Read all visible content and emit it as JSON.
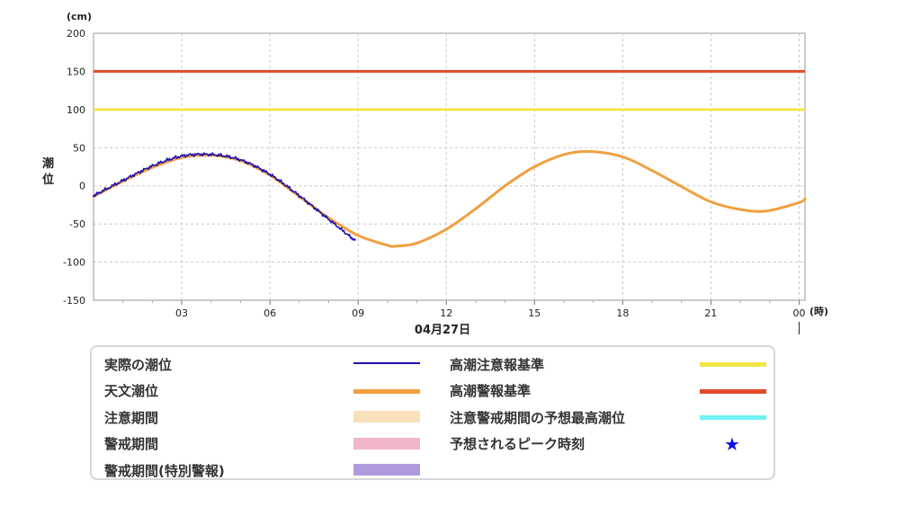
{
  "chart_data": {
    "type": "line",
    "ylabel": "潮位",
    "yunit": "(cm)",
    "xunit": "(時)",
    "date_label": "04月27日",
    "ylim": [
      -150,
      200
    ],
    "yticks": [
      200,
      150,
      100,
      50,
      0,
      -50,
      -100,
      -150
    ],
    "xlim_hours": [
      0,
      24.2
    ],
    "xticks": [
      {
        "hour": 3,
        "label": "03"
      },
      {
        "hour": 6,
        "label": "06"
      },
      {
        "hour": 9,
        "label": "09"
      },
      {
        "hour": 12,
        "label": "12"
      },
      {
        "hour": 15,
        "label": "15"
      },
      {
        "hour": 18,
        "label": "18"
      },
      {
        "hour": 21,
        "label": "21"
      },
      {
        "hour": 24,
        "label": "00"
      }
    ],
    "grid": true,
    "reference_lines": [
      {
        "name": "高潮警報基準",
        "value": 150,
        "color": "#e04a2a"
      },
      {
        "name": "高潮注意報基準",
        "value": 100,
        "color": "#f2e64a"
      }
    ],
    "series": [
      {
        "name": "天文潮位",
        "color": "#f0a040",
        "x": [
          0,
          1,
          2,
          3,
          4,
          5,
          6,
          7,
          8,
          9,
          10,
          10.3,
          11,
          12,
          13,
          14,
          15,
          16,
          16.9,
          18,
          19,
          20,
          21,
          22,
          22.9,
          24,
          24.2
        ],
        "y": [
          -14,
          6,
          24,
          37,
          40,
          33,
          14,
          -14,
          -42,
          -65,
          -78,
          -79,
          -75,
          -57,
          -30,
          0,
          25,
          41,
          45,
          38,
          20,
          -1,
          -21,
          -31,
          -33,
          -22,
          -17
        ]
      },
      {
        "name": "実際の潮位",
        "color": "#2010b0",
        "x": [
          0,
          1,
          2,
          3,
          4,
          5,
          6,
          7,
          8,
          8.9
        ],
        "y": [
          -13,
          7,
          26,
          39,
          41,
          34,
          15,
          -13,
          -44,
          -72
        ]
      }
    ]
  },
  "legend": {
    "items": [
      {
        "label": "実際の潮位",
        "kind": "line",
        "color": "#2010b0"
      },
      {
        "label": "高潮注意報基準",
        "kind": "line",
        "color": "#f2e64a"
      },
      {
        "label": "天文潮位",
        "kind": "line",
        "color": "#f0a040"
      },
      {
        "label": "高潮警報基準",
        "kind": "line",
        "color": "#e04a2a"
      },
      {
        "label": "注意期間",
        "kind": "block",
        "color": "#f8e1bb"
      },
      {
        "label": "注意警戒期間の予想最高潮位",
        "kind": "line",
        "color": "#6ef2f2"
      },
      {
        "label": "警戒期間",
        "kind": "block",
        "color": "#f2b6cc"
      },
      {
        "label": "予想されるピーク時刻",
        "kind": "star",
        "icon": "star-icon",
        "color": "#1010e0"
      },
      {
        "label": "警戒期間(特別警報)",
        "kind": "block",
        "color": "#b09adc"
      }
    ]
  }
}
